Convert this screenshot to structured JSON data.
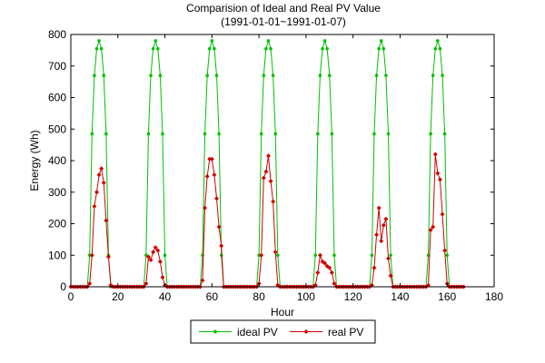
{
  "chart_data": {
    "type": "line",
    "title": "Comparision of Ideal and Real PV Value",
    "subtitle": "(1991-01-01~1991-01-07)",
    "xlabel": "Hour",
    "ylabel": "Energy (Wh)",
    "xlim": [
      0,
      180
    ],
    "ylim": [
      0,
      800
    ],
    "xticks": [
      0,
      20,
      40,
      60,
      80,
      100,
      120,
      140,
      160,
      180
    ],
    "yticks": [
      0,
      100,
      200,
      300,
      400,
      500,
      600,
      700,
      800
    ],
    "grid": false,
    "legend_position": "bottom-center",
    "series": [
      {
        "name": "ideal PV",
        "color": "#00c000",
        "marker": "dot",
        "x": [
          0,
          1,
          2,
          3,
          4,
          5,
          6,
          7,
          8,
          9,
          10,
          11,
          12,
          13,
          14,
          15,
          16,
          17,
          18,
          19,
          20,
          21,
          22,
          23,
          24,
          25,
          26,
          27,
          28,
          29,
          30,
          31,
          32,
          33,
          34,
          35,
          36,
          37,
          38,
          39,
          40,
          41,
          42,
          43,
          44,
          45,
          46,
          47,
          48,
          49,
          50,
          51,
          52,
          53,
          54,
          55,
          56,
          57,
          58,
          59,
          60,
          61,
          62,
          63,
          64,
          65,
          66,
          67,
          68,
          69,
          70,
          71,
          72,
          73,
          74,
          75,
          76,
          77,
          78,
          79,
          80,
          81,
          82,
          83,
          84,
          85,
          86,
          87,
          88,
          89,
          90,
          91,
          92,
          93,
          94,
          95,
          96,
          97,
          98,
          99,
          100,
          101,
          102,
          103,
          104,
          105,
          106,
          107,
          108,
          109,
          110,
          111,
          112,
          113,
          114,
          115,
          116,
          117,
          118,
          119,
          120,
          121,
          122,
          123,
          124,
          125,
          126,
          127,
          128,
          129,
          130,
          131,
          132,
          133,
          134,
          135,
          136,
          137,
          138,
          139,
          140,
          141,
          142,
          143,
          144,
          145,
          146,
          147,
          148,
          149,
          150,
          151,
          152,
          153,
          154,
          155,
          156,
          157,
          158,
          159,
          160,
          161,
          162,
          163,
          164,
          165,
          166,
          167
        ],
        "y": [
          0,
          0,
          0,
          0,
          0,
          0,
          0,
          0,
          100,
          485,
          670,
          755,
          780,
          755,
          670,
          485,
          100,
          0,
          0,
          0,
          0,
          0,
          0,
          0,
          0,
          0,
          0,
          0,
          0,
          0,
          0,
          0,
          100,
          485,
          670,
          755,
          780,
          755,
          670,
          485,
          100,
          0,
          0,
          0,
          0,
          0,
          0,
          0,
          0,
          0,
          0,
          0,
          0,
          0,
          0,
          0,
          100,
          485,
          670,
          755,
          780,
          755,
          670,
          485,
          100,
          0,
          0,
          0,
          0,
          0,
          0,
          0,
          0,
          0,
          0,
          0,
          0,
          0,
          0,
          0,
          100,
          485,
          670,
          755,
          780,
          755,
          670,
          485,
          100,
          0,
          0,
          0,
          0,
          0,
          0,
          0,
          0,
          0,
          0,
          0,
          0,
          0,
          0,
          0,
          100,
          485,
          670,
          755,
          780,
          755,
          670,
          485,
          100,
          0,
          0,
          0,
          0,
          0,
          0,
          0,
          0,
          0,
          0,
          0,
          0,
          0,
          0,
          0,
          100,
          485,
          670,
          755,
          780,
          755,
          670,
          485,
          100,
          0,
          0,
          0,
          0,
          0,
          0,
          0,
          0,
          0,
          0,
          0,
          0,
          0,
          0,
          0,
          100,
          485,
          670,
          755,
          780,
          755,
          670,
          485,
          100,
          0,
          0,
          0,
          0,
          0,
          0,
          0
        ]
      },
      {
        "name": "real PV",
        "color": "#d00000",
        "marker": "diamond",
        "x": [
          0,
          1,
          2,
          3,
          4,
          5,
          6,
          7,
          8,
          9,
          10,
          11,
          12,
          13,
          14,
          15,
          16,
          17,
          18,
          19,
          20,
          21,
          22,
          23,
          24,
          25,
          26,
          27,
          28,
          29,
          30,
          31,
          32,
          33,
          34,
          35,
          36,
          37,
          38,
          39,
          40,
          41,
          42,
          43,
          44,
          45,
          46,
          47,
          48,
          49,
          50,
          51,
          52,
          53,
          54,
          55,
          56,
          57,
          58,
          59,
          60,
          61,
          62,
          63,
          64,
          65,
          66,
          67,
          68,
          69,
          70,
          71,
          72,
          73,
          74,
          75,
          76,
          77,
          78,
          79,
          80,
          81,
          82,
          83,
          84,
          85,
          86,
          87,
          88,
          89,
          90,
          91,
          92,
          93,
          94,
          95,
          96,
          97,
          98,
          99,
          100,
          101,
          102,
          103,
          104,
          105,
          106,
          107,
          108,
          109,
          110,
          111,
          112,
          113,
          114,
          115,
          116,
          117,
          118,
          119,
          120,
          121,
          122,
          123,
          124,
          125,
          126,
          127,
          128,
          129,
          130,
          131,
          132,
          133,
          134,
          135,
          136,
          137,
          138,
          139,
          140,
          141,
          142,
          143,
          144,
          145,
          146,
          147,
          148,
          149,
          150,
          151,
          152,
          153,
          154,
          155,
          156,
          157,
          158,
          159,
          160,
          161,
          162,
          163,
          164,
          165,
          166,
          167
        ],
        "y": [
          0,
          0,
          0,
          0,
          0,
          0,
          0,
          0,
          10,
          100,
          255,
          300,
          355,
          375,
          330,
          210,
          95,
          5,
          0,
          0,
          0,
          0,
          0,
          0,
          0,
          0,
          0,
          0,
          0,
          0,
          0,
          0,
          10,
          95,
          85,
          110,
          125,
          115,
          80,
          30,
          5,
          0,
          0,
          0,
          0,
          0,
          0,
          0,
          0,
          0,
          0,
          0,
          0,
          0,
          0,
          0,
          20,
          250,
          350,
          405,
          405,
          355,
          280,
          190,
          130,
          0,
          0,
          0,
          0,
          0,
          0,
          0,
          0,
          0,
          0,
          0,
          0,
          0,
          0,
          0,
          10,
          100,
          345,
          365,
          415,
          335,
          270,
          110,
          5,
          0,
          0,
          0,
          0,
          0,
          0,
          0,
          0,
          0,
          0,
          0,
          0,
          0,
          0,
          0,
          5,
          45,
          100,
          80,
          75,
          65,
          60,
          45,
          10,
          0,
          0,
          0,
          0,
          0,
          0,
          0,
          0,
          0,
          0,
          0,
          0,
          0,
          0,
          0,
          5,
          60,
          165,
          250,
          145,
          195,
          215,
          90,
          35,
          0,
          0,
          0,
          0,
          0,
          0,
          0,
          0,
          0,
          0,
          0,
          0,
          0,
          0,
          0,
          5,
          180,
          190,
          420,
          360,
          340,
          230,
          115,
          10,
          0,
          0,
          0,
          0,
          0,
          0,
          0
        ]
      }
    ]
  }
}
